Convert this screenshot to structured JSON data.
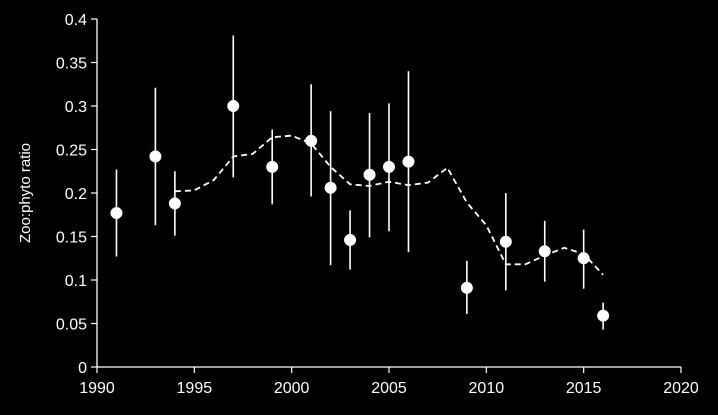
{
  "chart_data": {
    "type": "scatter",
    "title": "",
    "xlabel": "",
    "ylabel": "Zoo:phyto ratio",
    "xlim": [
      1990,
      2020
    ],
    "ylim": [
      0,
      0.4
    ],
    "xticks": [
      1990,
      1995,
      2000,
      2005,
      2010,
      2015,
      2020
    ],
    "yticks": [
      0,
      0.05,
      0.1,
      0.15,
      0.2,
      0.25,
      0.3,
      0.35,
      0.4
    ],
    "xtick_labels": [
      "1990",
      "1995",
      "2000",
      "2005",
      "2010",
      "2015",
      "2020"
    ],
    "ytick_labels": [
      "0",
      "0.05",
      "0.1",
      "0.15",
      "0.2",
      "0.25",
      "0.3",
      "0.35",
      "0.4"
    ],
    "grid": false,
    "legend": "none",
    "background_color": "#000000",
    "foreground_color": "#ffffff",
    "series": [
      {
        "type": "scatter-with-error-bars",
        "x": [
          1991,
          1993,
          1994,
          1997,
          1999,
          2001,
          2002,
          2003,
          2004,
          2005,
          2006,
          2009,
          2011,
          2013,
          2015,
          2016
        ],
        "y": [
          0.177,
          0.242,
          0.188,
          0.3,
          0.23,
          0.26,
          0.206,
          0.146,
          0.221,
          0.23,
          0.236,
          0.091,
          0.144,
          0.133,
          0.125,
          0.059
        ],
        "y_low": [
          0.127,
          0.163,
          0.151,
          0.218,
          0.187,
          0.196,
          0.117,
          0.112,
          0.149,
          0.156,
          0.132,
          0.061,
          0.088,
          0.098,
          0.09,
          0.043
        ],
        "y_high": [
          0.227,
          0.321,
          0.225,
          0.381,
          0.273,
          0.325,
          0.294,
          0.18,
          0.292,
          0.303,
          0.34,
          0.122,
          0.2,
          0.168,
          0.158,
          0.074
        ]
      },
      {
        "type": "line",
        "style": "dashed",
        "x": [
          1994,
          1995,
          1996,
          1997,
          1998,
          1999,
          2000,
          2001,
          2002,
          2003,
          2004,
          2005,
          2006,
          2007,
          2008,
          2009,
          2010,
          2011,
          2012,
          2013,
          2014,
          2015,
          2016
        ],
        "y": [
          0.202,
          0.203,
          0.215,
          0.242,
          0.245,
          0.264,
          0.266,
          0.257,
          0.23,
          0.21,
          0.208,
          0.213,
          0.209,
          0.212,
          0.229,
          0.189,
          0.163,
          0.118,
          0.118,
          0.128,
          0.137,
          0.13,
          0.106
        ]
      }
    ]
  }
}
